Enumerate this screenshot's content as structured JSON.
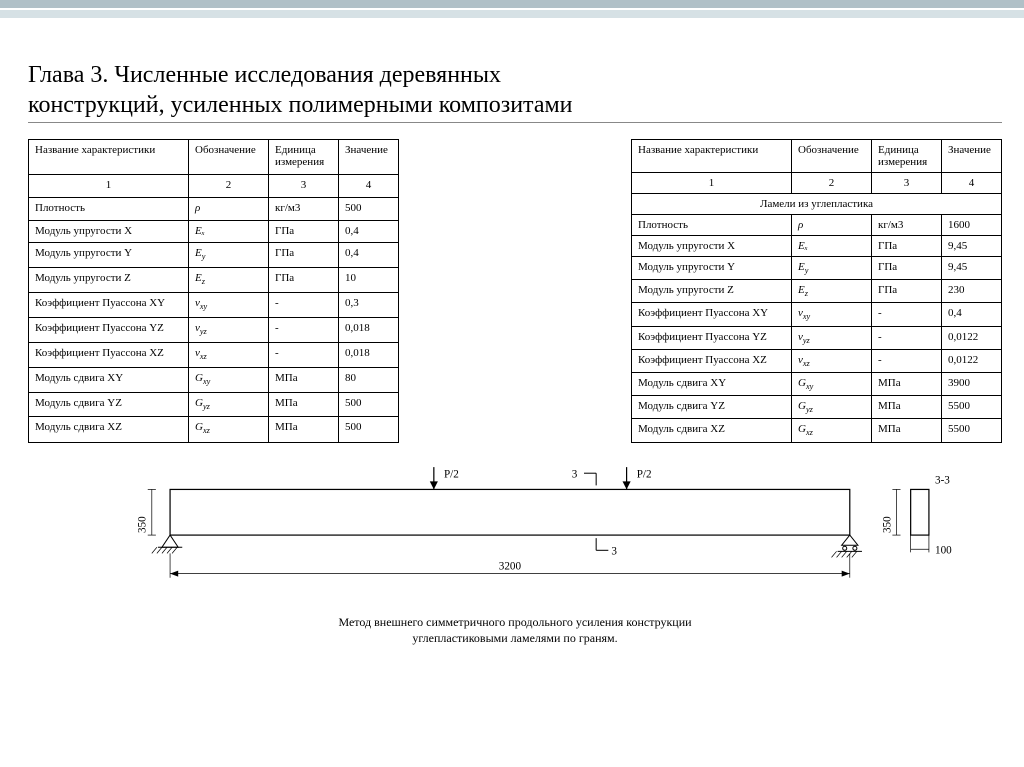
{
  "title_line1": "Глава 3. Численные исследования деревянных",
  "title_line2": "конструкций, усиленных полимерными композитами",
  "head": {
    "c1": "Название характеристики",
    "c2": "Обозначение",
    "c3": "Единица измерения",
    "c4": "Значение",
    "idx1": "1",
    "idx2": "2",
    "idx3": "3",
    "idx4": "4"
  },
  "t1_rows": [
    {
      "n": "Плотность",
      "s": "ρ",
      "u": "кг/м3",
      "v": "500"
    },
    {
      "n": "Модуль упругости X",
      "s": "Eₓ",
      "u": "ГПа",
      "v": "0,4"
    },
    {
      "n": "Модуль упругости Y",
      "s": "E_y",
      "u": "ГПа",
      "v": "0,4"
    },
    {
      "n": "Модуль упругости Z",
      "s": "E_z",
      "u": "ГПа",
      "v": "10"
    },
    {
      "n": "Коэффициент Пуассона XY",
      "s": "v_xy",
      "u": "-",
      "v": "0,3"
    },
    {
      "n": "Коэффициент Пуассона YZ",
      "s": "v_yz",
      "u": "-",
      "v": "0,018"
    },
    {
      "n": "Коэффициент Пуассона XZ",
      "s": "v_xz",
      "u": "-",
      "v": "0,018"
    },
    {
      "n": "Модуль сдвига XY",
      "s": "G_xy",
      "u": "МПа",
      "v": "80"
    },
    {
      "n": "Модуль сдвига YZ",
      "s": "G_yz",
      "u": "МПа",
      "v": "500"
    },
    {
      "n": "Модуль сдвига XZ",
      "s": "G_xz",
      "u": "МПа",
      "v": "500"
    }
  ],
  "t2_section": "Ламели из углепластика",
  "t2_rows": [
    {
      "n": "Плотность",
      "s": "ρ",
      "u": "кг/м3",
      "v": "1600"
    },
    {
      "n": "Модуль упругости X",
      "s": "Eₓ",
      "u": "ГПа",
      "v": "9,45"
    },
    {
      "n": "Модуль упругости Y",
      "s": "E_y",
      "u": "ГПа",
      "v": "9,45"
    },
    {
      "n": "Модуль упругости Z",
      "s": "E_z",
      "u": "ГПа",
      "v": "230"
    },
    {
      "n": "Коэффициент Пуассона XY",
      "s": "v_xy",
      "u": "-",
      "v": "0,4"
    },
    {
      "n": "Коэффициент Пуассона YZ",
      "s": "v_yz",
      "u": "-",
      "v": "0,0122"
    },
    {
      "n": "Коэффициент Пуассона XZ",
      "s": "v_xz",
      "u": "-",
      "v": "0,0122"
    },
    {
      "n": "Модуль сдвига XY",
      "s": "G_xy",
      "u": "МПа",
      "v": "3900"
    },
    {
      "n": "Модуль сдвига YZ",
      "s": "G_yz",
      "u": "МПа",
      "v": "5500"
    },
    {
      "n": "Модуль сдвига XZ",
      "s": "G_xz",
      "u": "МПа",
      "v": "5500"
    }
  ],
  "diagram": {
    "load_left": "P/2",
    "load_right": "P/2",
    "section_mark": "3",
    "section_label": "3-3",
    "dim_h": "350",
    "dim_span": "3200",
    "cross_h": "350",
    "cross_w": "100",
    "stroke": "#000000",
    "font_size": 11
  },
  "caption_l1": "Метод внешнего симметричного продольного усиления конструкции",
  "caption_l2": "углепластиковыми ламелями по граням."
}
